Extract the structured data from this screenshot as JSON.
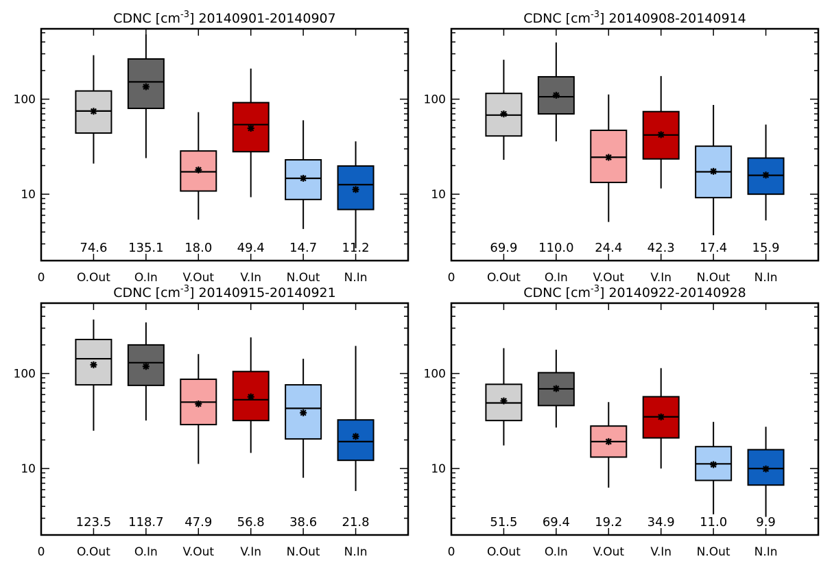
{
  "chart_data": [
    {
      "type": "box",
      "title_prefix": "CDNC [cm",
      "title_exponent": "-3",
      "title_suffix": "] 20140901-20140907",
      "yscale": "log",
      "ylim": [
        2,
        550
      ],
      "yticks": [
        10,
        100
      ],
      "x_origin_label": "0",
      "categories": [
        "O.Out",
        "O.In",
        "V.Out",
        "V.In",
        "N.Out",
        "N.In"
      ],
      "colors": [
        "#d0d0d0",
        "#646464",
        "#f7a3a3",
        "#c00000",
        "#a7cdf7",
        "#0f60c0"
      ],
      "boxes": [
        {
          "whislo": 21,
          "q1": 44,
          "median": 75,
          "q3": 122,
          "whishi": 290,
          "mean": 74.6
        },
        {
          "whislo": 24,
          "q1": 80,
          "median": 152,
          "q3": 265,
          "whishi": 480,
          "mean": 135.1
        },
        {
          "whislo": 5.4,
          "q1": 10.8,
          "median": 17.2,
          "q3": 28.5,
          "whishi": 73,
          "mean": 18.0
        },
        {
          "whislo": 9.3,
          "q1": 28,
          "median": 54,
          "q3": 92,
          "whishi": 210,
          "mean": 49.4
        },
        {
          "whislo": 4.3,
          "q1": 8.8,
          "median": 14.7,
          "q3": 23,
          "whishi": 60,
          "mean": 14.7
        },
        {
          "whislo": 2.7,
          "q1": 6.9,
          "median": 12.6,
          "q3": 19.8,
          "whishi": 36,
          "mean": 11.2
        }
      ],
      "mean_labels": [
        "74.6",
        "135.1",
        "18.0",
        "49.4",
        "14.7",
        "11.2"
      ]
    },
    {
      "type": "box",
      "title_prefix": "CDNC [cm",
      "title_exponent": "-3",
      "title_suffix": "] 20140908-20140914",
      "yscale": "log",
      "ylim": [
        2,
        550
      ],
      "yticks": [
        10,
        100
      ],
      "x_origin_label": "0",
      "categories": [
        "O.Out",
        "O.In",
        "V.Out",
        "V.In",
        "N.Out",
        "N.In"
      ],
      "colors": [
        "#d0d0d0",
        "#646464",
        "#f7a3a3",
        "#c00000",
        "#a7cdf7",
        "#0f60c0"
      ],
      "boxes": [
        {
          "whislo": 23,
          "q1": 41,
          "median": 68,
          "q3": 115,
          "whishi": 260,
          "mean": 69.9
        },
        {
          "whislo": 36,
          "q1": 70,
          "median": 106,
          "q3": 172,
          "whishi": 395,
          "mean": 110.0
        },
        {
          "whislo": 5.1,
          "q1": 13.3,
          "median": 24.5,
          "q3": 47,
          "whishi": 112,
          "mean": 24.4
        },
        {
          "whislo": 11.5,
          "q1": 23.5,
          "median": 42,
          "q3": 74,
          "whishi": 175,
          "mean": 42.3
        },
        {
          "whislo": 3.7,
          "q1": 9.2,
          "median": 17.2,
          "q3": 32,
          "whishi": 87,
          "mean": 17.4
        },
        {
          "whislo": 5.3,
          "q1": 10,
          "median": 15.8,
          "q3": 24,
          "whishi": 54,
          "mean": 15.9
        }
      ],
      "mean_labels": [
        "69.9",
        "110.0",
        "24.4",
        "42.3",
        "17.4",
        "15.9"
      ]
    },
    {
      "type": "box",
      "title_prefix": "CDNC [cm",
      "title_exponent": "-3",
      "title_suffix": "] 20140915-20140921",
      "yscale": "log",
      "ylim": [
        2,
        550
      ],
      "yticks": [
        10,
        100
      ],
      "x_origin_label": "0",
      "categories": [
        "O.Out",
        "O.In",
        "V.Out",
        "V.In",
        "N.Out",
        "N.In"
      ],
      "colors": [
        "#d0d0d0",
        "#646464",
        "#f7a3a3",
        "#c00000",
        "#a7cdf7",
        "#0f60c0"
      ],
      "boxes": [
        {
          "whislo": 25,
          "q1": 76,
          "median": 143,
          "q3": 228,
          "whishi": 370,
          "mean": 123.5
        },
        {
          "whislo": 32,
          "q1": 75,
          "median": 130,
          "q3": 200,
          "whishi": 345,
          "mean": 118.7
        },
        {
          "whislo": 11.2,
          "q1": 29,
          "median": 50,
          "q3": 87,
          "whishi": 160,
          "mean": 47.9
        },
        {
          "whislo": 14.6,
          "q1": 32,
          "median": 53,
          "q3": 105,
          "whishi": 240,
          "mean": 56.8
        },
        {
          "whislo": 8,
          "q1": 20.5,
          "median": 43,
          "q3": 76,
          "whishi": 143,
          "mean": 38.6
        },
        {
          "whislo": 5.8,
          "q1": 12.2,
          "median": 19.2,
          "q3": 32.5,
          "whishi": 195,
          "mean": 21.8
        }
      ],
      "mean_labels": [
        "123.5",
        "118.7",
        "47.9",
        "56.8",
        "38.6",
        "21.8"
      ]
    },
    {
      "type": "box",
      "title_prefix": "CDNC [cm",
      "title_exponent": "-3",
      "title_suffix": "] 20140922-20140928",
      "yscale": "log",
      "ylim": [
        2,
        550
      ],
      "yticks": [
        10,
        100
      ],
      "x_origin_label": "0",
      "categories": [
        "O.Out",
        "O.In",
        "V.Out",
        "V.In",
        "N.Out",
        "N.In"
      ],
      "colors": [
        "#d0d0d0",
        "#646464",
        "#f7a3a3",
        "#c00000",
        "#a7cdf7",
        "#0f60c0"
      ],
      "boxes": [
        {
          "whislo": 17.5,
          "q1": 32,
          "median": 49,
          "q3": 77,
          "whishi": 185,
          "mean": 51.5
        },
        {
          "whislo": 27,
          "q1": 46,
          "median": 69,
          "q3": 102,
          "whishi": 178,
          "mean": 69.4
        },
        {
          "whislo": 6.3,
          "q1": 13.2,
          "median": 19.2,
          "q3": 28,
          "whishi": 50,
          "mean": 19.2
        },
        {
          "whislo": 10,
          "q1": 21,
          "median": 35,
          "q3": 57,
          "whishi": 114,
          "mean": 34.9
        },
        {
          "whislo": 3.3,
          "q1": 7.5,
          "median": 11.2,
          "q3": 17,
          "whishi": 31,
          "mean": 11.0
        },
        {
          "whislo": 3.1,
          "q1": 6.7,
          "median": 10,
          "q3": 15.8,
          "whishi": 27.5,
          "mean": 9.9
        }
      ],
      "mean_labels": [
        "51.5",
        "69.4",
        "19.2",
        "34.9",
        "11.0",
        "9.9"
      ]
    }
  ]
}
